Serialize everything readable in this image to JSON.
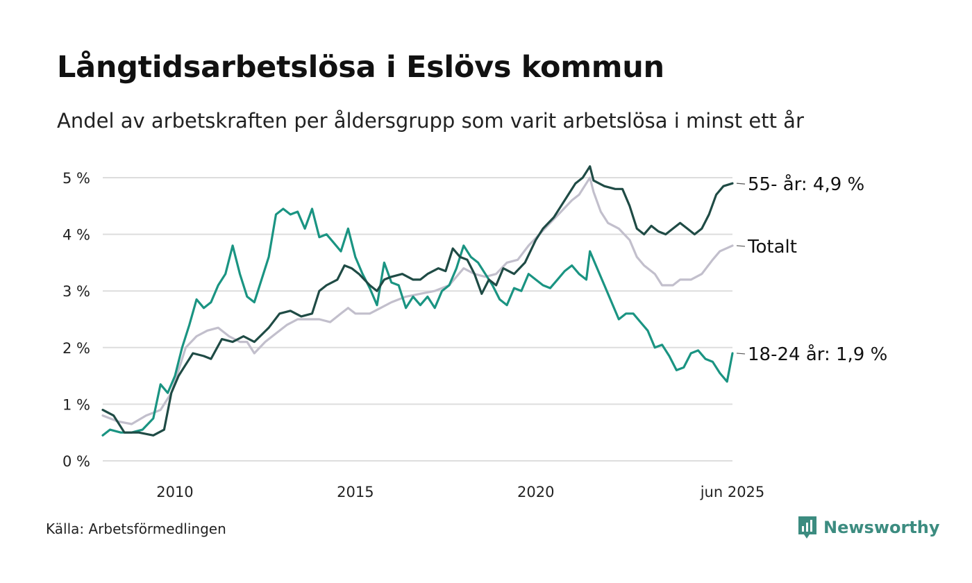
{
  "title": "Långtidsarbetslösa i Eslövs kommun",
  "subtitle": "Andel av arbetskraften per åldersgrupp som varit arbetslösa i minst ett år",
  "source": "Källa: Arbetsförmedlingen",
  "brand": "Newsworthy",
  "icons": {
    "brand_logo": "bar-chart-speech-bubble-icon"
  },
  "colors": {
    "age_55": "#1f4b45",
    "total": "#c2bfcc",
    "age_18_24": "#1a9482",
    "grid": "#dddddd",
    "brand": "#3c8c80"
  },
  "chart_data": {
    "type": "line",
    "x_ticks": [
      2010,
      2015,
      2020
    ],
    "x_tick_labels": [
      "2010",
      "2015",
      "2020",
      "jun 2025"
    ],
    "x_range": [
      2008.0,
      2025.45
    ],
    "ylim": [
      0,
      5
    ],
    "y_ticks": [
      0,
      1,
      2,
      3,
      4,
      5
    ],
    "y_tick_labels": [
      "0 %",
      "1 %",
      "2 %",
      "3 %",
      "4 %",
      "5 %"
    ],
    "grid": true,
    "legend": "end-of-line labels",
    "series": [
      {
        "name": "55- år",
        "end_label": "55- år: 4,9 %",
        "color": "#1f4b45",
        "points": [
          [
            2008.0,
            0.9
          ],
          [
            2008.3,
            0.8
          ],
          [
            2008.6,
            0.5
          ],
          [
            2009.0,
            0.5
          ],
          [
            2009.4,
            0.45
          ],
          [
            2009.7,
            0.55
          ],
          [
            2009.9,
            1.2
          ],
          [
            2010.1,
            1.5
          ],
          [
            2010.3,
            1.7
          ],
          [
            2010.5,
            1.9
          ],
          [
            2010.8,
            1.85
          ],
          [
            2011.0,
            1.8
          ],
          [
            2011.3,
            2.15
          ],
          [
            2011.6,
            2.1
          ],
          [
            2011.9,
            2.2
          ],
          [
            2012.2,
            2.1
          ],
          [
            2012.6,
            2.35
          ],
          [
            2012.9,
            2.6
          ],
          [
            2013.2,
            2.65
          ],
          [
            2013.5,
            2.55
          ],
          [
            2013.8,
            2.6
          ],
          [
            2014.0,
            3.0
          ],
          [
            2014.2,
            3.1
          ],
          [
            2014.5,
            3.2
          ],
          [
            2014.7,
            3.45
          ],
          [
            2014.9,
            3.4
          ],
          [
            2015.1,
            3.3
          ],
          [
            2015.4,
            3.1
          ],
          [
            2015.6,
            3.0
          ],
          [
            2015.8,
            3.2
          ],
          [
            2016.0,
            3.25
          ],
          [
            2016.3,
            3.3
          ],
          [
            2016.6,
            3.2
          ],
          [
            2016.8,
            3.2
          ],
          [
            2017.0,
            3.3
          ],
          [
            2017.3,
            3.4
          ],
          [
            2017.5,
            3.35
          ],
          [
            2017.7,
            3.75
          ],
          [
            2017.9,
            3.6
          ],
          [
            2018.1,
            3.55
          ],
          [
            2018.3,
            3.3
          ],
          [
            2018.5,
            2.95
          ],
          [
            2018.7,
            3.2
          ],
          [
            2018.9,
            3.1
          ],
          [
            2019.1,
            3.4
          ],
          [
            2019.4,
            3.3
          ],
          [
            2019.7,
            3.5
          ],
          [
            2020.0,
            3.9
          ],
          [
            2020.2,
            4.1
          ],
          [
            2020.5,
            4.3
          ],
          [
            2020.7,
            4.5
          ],
          [
            2020.9,
            4.7
          ],
          [
            2021.1,
            4.9
          ],
          [
            2021.3,
            5.0
          ],
          [
            2021.5,
            5.2
          ],
          [
            2021.6,
            4.95
          ],
          [
            2021.9,
            4.85
          ],
          [
            2022.2,
            4.8
          ],
          [
            2022.4,
            4.8
          ],
          [
            2022.6,
            4.5
          ],
          [
            2022.8,
            4.1
          ],
          [
            2023.0,
            4.0
          ],
          [
            2023.2,
            4.15
          ],
          [
            2023.4,
            4.05
          ],
          [
            2023.6,
            4.0
          ],
          [
            2023.8,
            4.1
          ],
          [
            2024.0,
            4.2
          ],
          [
            2024.2,
            4.1
          ],
          [
            2024.4,
            4.0
          ],
          [
            2024.6,
            4.1
          ],
          [
            2024.8,
            4.35
          ],
          [
            2025.0,
            4.7
          ],
          [
            2025.2,
            4.85
          ],
          [
            2025.45,
            4.9
          ]
        ]
      },
      {
        "name": "Totalt",
        "end_label": "Totalt",
        "color": "#c2bfcc",
        "points": [
          [
            2008.0,
            0.8
          ],
          [
            2008.4,
            0.7
          ],
          [
            2008.8,
            0.65
          ],
          [
            2009.2,
            0.8
          ],
          [
            2009.6,
            0.9
          ],
          [
            2009.9,
            1.2
          ],
          [
            2010.1,
            1.6
          ],
          [
            2010.3,
            2.0
          ],
          [
            2010.6,
            2.2
          ],
          [
            2010.9,
            2.3
          ],
          [
            2011.2,
            2.35
          ],
          [
            2011.5,
            2.2
          ],
          [
            2011.8,
            2.1
          ],
          [
            2012.0,
            2.1
          ],
          [
            2012.2,
            1.9
          ],
          [
            2012.5,
            2.1
          ],
          [
            2012.8,
            2.25
          ],
          [
            2013.1,
            2.4
          ],
          [
            2013.4,
            2.5
          ],
          [
            2013.7,
            2.5
          ],
          [
            2014.0,
            2.5
          ],
          [
            2014.3,
            2.45
          ],
          [
            2014.6,
            2.6
          ],
          [
            2014.8,
            2.7
          ],
          [
            2015.0,
            2.6
          ],
          [
            2015.4,
            2.6
          ],
          [
            2015.7,
            2.7
          ],
          [
            2016.0,
            2.8
          ],
          [
            2016.4,
            2.9
          ],
          [
            2016.8,
            2.95
          ],
          [
            2017.2,
            3.0
          ],
          [
            2017.6,
            3.1
          ],
          [
            2018.0,
            3.4
          ],
          [
            2018.3,
            3.3
          ],
          [
            2018.6,
            3.25
          ],
          [
            2018.9,
            3.3
          ],
          [
            2019.2,
            3.5
          ],
          [
            2019.5,
            3.55
          ],
          [
            2019.8,
            3.8
          ],
          [
            2020.1,
            4.0
          ],
          [
            2020.4,
            4.2
          ],
          [
            2020.7,
            4.4
          ],
          [
            2021.0,
            4.6
          ],
          [
            2021.2,
            4.7
          ],
          [
            2021.4,
            4.9
          ],
          [
            2021.5,
            5.0
          ],
          [
            2021.6,
            4.75
          ],
          [
            2021.8,
            4.4
          ],
          [
            2022.0,
            4.2
          ],
          [
            2022.3,
            4.1
          ],
          [
            2022.6,
            3.9
          ],
          [
            2022.8,
            3.6
          ],
          [
            2023.0,
            3.45
          ],
          [
            2023.3,
            3.3
          ],
          [
            2023.5,
            3.1
          ],
          [
            2023.8,
            3.1
          ],
          [
            2024.0,
            3.2
          ],
          [
            2024.3,
            3.2
          ],
          [
            2024.6,
            3.3
          ],
          [
            2024.9,
            3.55
          ],
          [
            2025.1,
            3.7
          ],
          [
            2025.45,
            3.8
          ]
        ]
      },
      {
        "name": "18-24 år",
        "end_label": "18-24 år: 1,9 %",
        "color": "#1a9482",
        "points": [
          [
            2008.0,
            0.45
          ],
          [
            2008.2,
            0.55
          ],
          [
            2008.5,
            0.5
          ],
          [
            2008.8,
            0.5
          ],
          [
            2009.1,
            0.55
          ],
          [
            2009.4,
            0.75
          ],
          [
            2009.6,
            1.35
          ],
          [
            2009.8,
            1.2
          ],
          [
            2010.0,
            1.5
          ],
          [
            2010.2,
            2.0
          ],
          [
            2010.4,
            2.4
          ],
          [
            2010.6,
            2.85
          ],
          [
            2010.8,
            2.7
          ],
          [
            2011.0,
            2.8
          ],
          [
            2011.2,
            3.1
          ],
          [
            2011.4,
            3.3
          ],
          [
            2011.6,
            3.8
          ],
          [
            2011.8,
            3.3
          ],
          [
            2012.0,
            2.9
          ],
          [
            2012.2,
            2.8
          ],
          [
            2012.4,
            3.2
          ],
          [
            2012.6,
            3.6
          ],
          [
            2012.8,
            4.35
          ],
          [
            2013.0,
            4.45
          ],
          [
            2013.2,
            4.35
          ],
          [
            2013.4,
            4.4
          ],
          [
            2013.6,
            4.1
          ],
          [
            2013.8,
            4.45
          ],
          [
            2014.0,
            3.95
          ],
          [
            2014.2,
            4.0
          ],
          [
            2014.4,
            3.85
          ],
          [
            2014.6,
            3.7
          ],
          [
            2014.8,
            4.1
          ],
          [
            2015.0,
            3.6
          ],
          [
            2015.2,
            3.3
          ],
          [
            2015.4,
            3.05
          ],
          [
            2015.6,
            2.75
          ],
          [
            2015.8,
            3.5
          ],
          [
            2016.0,
            3.15
          ],
          [
            2016.2,
            3.1
          ],
          [
            2016.4,
            2.7
          ],
          [
            2016.6,
            2.9
          ],
          [
            2016.8,
            2.75
          ],
          [
            2017.0,
            2.9
          ],
          [
            2017.2,
            2.7
          ],
          [
            2017.4,
            3.0
          ],
          [
            2017.6,
            3.1
          ],
          [
            2017.8,
            3.4
          ],
          [
            2018.0,
            3.8
          ],
          [
            2018.2,
            3.6
          ],
          [
            2018.4,
            3.5
          ],
          [
            2018.6,
            3.3
          ],
          [
            2018.8,
            3.1
          ],
          [
            2019.0,
            2.85
          ],
          [
            2019.2,
            2.75
          ],
          [
            2019.4,
            3.05
          ],
          [
            2019.6,
            3.0
          ],
          [
            2019.8,
            3.3
          ],
          [
            2020.0,
            3.2
          ],
          [
            2020.2,
            3.1
          ],
          [
            2020.4,
            3.05
          ],
          [
            2020.6,
            3.2
          ],
          [
            2020.8,
            3.35
          ],
          [
            2021.0,
            3.45
          ],
          [
            2021.2,
            3.3
          ],
          [
            2021.4,
            3.2
          ],
          [
            2021.5,
            3.7
          ],
          [
            2021.7,
            3.4
          ],
          [
            2021.9,
            3.1
          ],
          [
            2022.1,
            2.8
          ],
          [
            2022.3,
            2.5
          ],
          [
            2022.5,
            2.6
          ],
          [
            2022.7,
            2.6
          ],
          [
            2022.9,
            2.45
          ],
          [
            2023.1,
            2.3
          ],
          [
            2023.3,
            2.0
          ],
          [
            2023.5,
            2.05
          ],
          [
            2023.7,
            1.85
          ],
          [
            2023.9,
            1.6
          ],
          [
            2024.1,
            1.65
          ],
          [
            2024.3,
            1.9
          ],
          [
            2024.5,
            1.95
          ],
          [
            2024.7,
            1.8
          ],
          [
            2024.9,
            1.75
          ],
          [
            2025.1,
            1.55
          ],
          [
            2025.3,
            1.4
          ],
          [
            2025.45,
            1.9
          ]
        ]
      }
    ]
  }
}
